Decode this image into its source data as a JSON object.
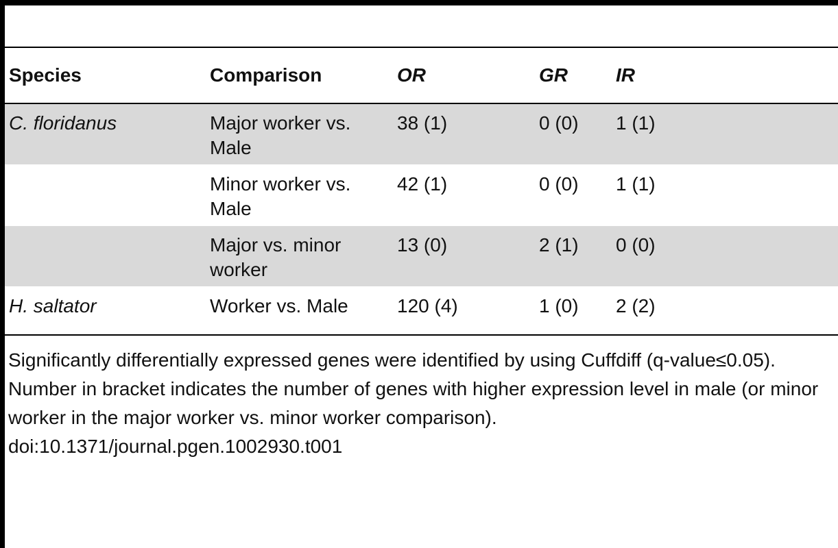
{
  "table": {
    "header": [
      "Species",
      "Comparison",
      "OR",
      "GR",
      "IR"
    ],
    "rows": [
      [
        "C. floridanus",
        "Major worker vs. Male",
        "38 (1)",
        "0 (0)",
        "1 (1)"
      ],
      [
        null,
        "Minor worker vs. Male",
        "42 (1)",
        "0 (0)",
        "1 (1)"
      ],
      [
        null,
        "Major vs. minor worker",
        "13 (0)",
        "2 (1)",
        "0 (0)"
      ],
      [
        "H. saltator",
        "Worker vs. Male",
        "120 (4)",
        "1 (0)",
        "2 (2)"
      ]
    ]
  },
  "footnote": "Significantly differentially expressed genes were identified by using Cuffdiff (q-value≤0.05). Number in bracket indicates the number of genes with higher expression level in male (or minor worker in the major worker vs. minor worker comparison).",
  "doi": "doi:10.1371/journal.pgen.1002930.t001"
}
